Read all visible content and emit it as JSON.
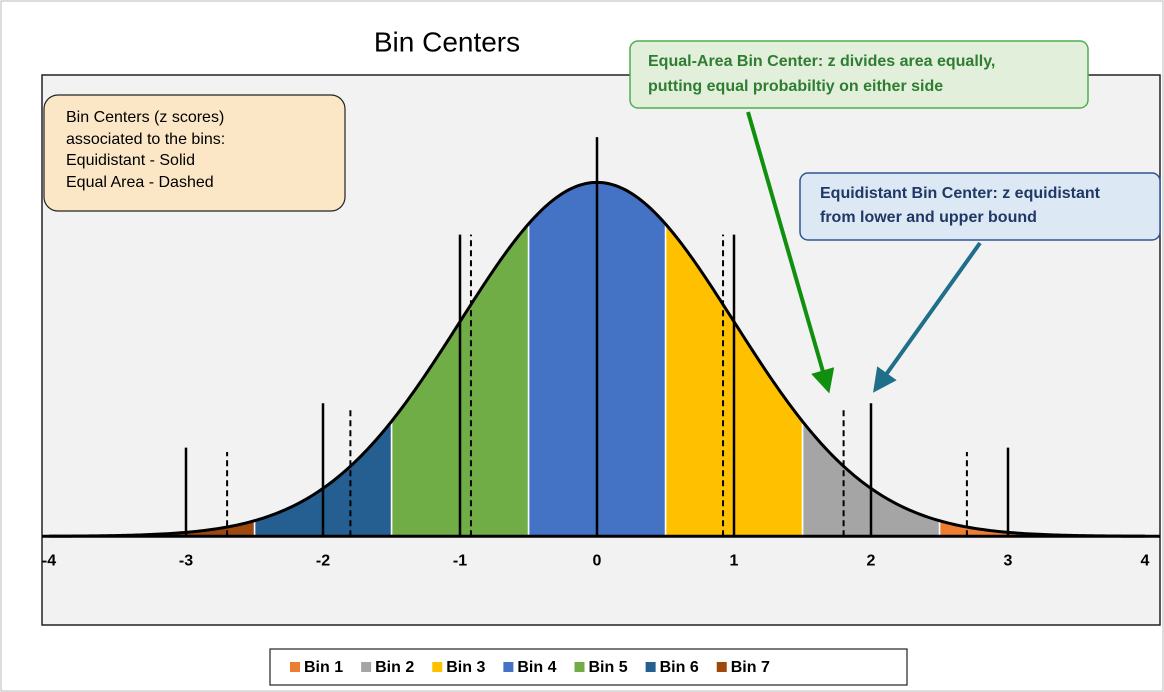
{
  "chart_data": {
    "type": "area",
    "title": "Bin Centers",
    "xlim": [
      -4,
      4
    ],
    "xticks": [
      -4,
      -3,
      -2,
      -1,
      0,
      1,
      2,
      3,
      4
    ],
    "ylim": [
      -0.1,
      0.52
    ],
    "series": [
      {
        "name": "Bin 1",
        "color": "#ED7D31",
        "range": [
          2.5,
          3.5
        ]
      },
      {
        "name": "Bin 2",
        "color": "#A5A5A5",
        "range": [
          1.5,
          2.5
        ]
      },
      {
        "name": "Bin 3",
        "color": "#FFC000",
        "range": [
          0.5,
          1.5
        ]
      },
      {
        "name": "Bin 4",
        "color": "#4472C4",
        "range": [
          -0.5,
          0.5
        ]
      },
      {
        "name": "Bin 5",
        "color": "#70AD47",
        "range": [
          -1.5,
          -0.5
        ]
      },
      {
        "name": "Bin 6",
        "color": "#255E91",
        "range": [
          -2.5,
          -1.5
        ]
      },
      {
        "name": "Bin 7",
        "color": "#9E480E",
        "range": [
          -3.5,
          -2.5
        ]
      }
    ],
    "equidistant_centers": [
      -3,
      -2,
      -1,
      0,
      1,
      2,
      3
    ],
    "equidistant_heights": [
      0.1,
      0.15,
      0.34,
      0.45,
      0.34,
      0.15,
      0.1
    ],
    "equal_area_centers": [
      -2.7,
      -1.8,
      -0.92,
      0.92,
      1.8,
      2.7
    ],
    "equal_area_heights": [
      0.095,
      0.145,
      0.34,
      0.34,
      0.145,
      0.095
    ],
    "annotations": {
      "info": [
        "Bin Centers (z scores)",
        "associated to the bins:",
        "Equidistant - Solid",
        "Equal Area - Dashed"
      ],
      "equal_area": [
        "Equal-Area Bin Center: z divides area equally,",
        "putting equal probabiltiy on either side"
      ],
      "equidistant": [
        "Equidistant Bin Center: z equidistant",
        "from lower and upper bound"
      ]
    }
  }
}
